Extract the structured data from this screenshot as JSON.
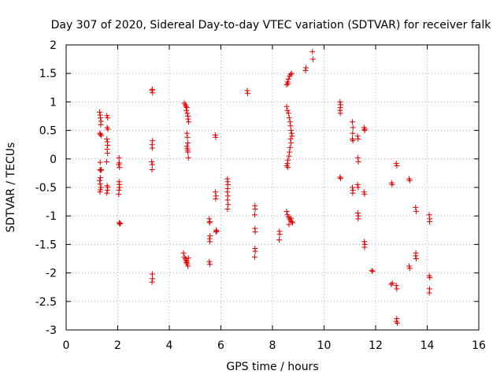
{
  "chart_data": {
    "type": "scatter",
    "title": "Day 307 of 2020, Sidereal Day-to-day VTEC variation (SDTVAR) for receiver falk",
    "xlabel": "GPS time / hours",
    "ylabel": "SDTVAR / TECUs",
    "xlim": [
      0,
      16
    ],
    "ylim": [
      -3,
      2
    ],
    "xticks": [
      "0",
      "2",
      "4",
      "6",
      "8",
      "10",
      "12",
      "14",
      "16"
    ],
    "yticks": [
      "-3",
      "-2.5",
      "-2",
      "-1.5",
      "-1",
      "-0.5",
      "0",
      "0.5",
      "1",
      "1.5",
      "2"
    ],
    "grid": true,
    "marker": "+",
    "color": "#e00000",
    "series": [
      {
        "name": "SDTVAR",
        "points": [
          [
            1.3,
            0.82
          ],
          [
            1.32,
            0.77
          ],
          [
            1.33,
            0.72
          ],
          [
            1.35,
            0.66
          ],
          [
            1.34,
            0.6
          ],
          [
            1.31,
            0.45
          ],
          [
            1.33,
            0.43
          ],
          [
            1.36,
            0.41
          ],
          [
            1.32,
            -0.06
          ],
          [
            1.31,
            -0.19
          ],
          [
            1.34,
            -0.2
          ],
          [
            1.36,
            -0.19
          ],
          [
            1.33,
            -0.33
          ],
          [
            1.3,
            -0.38
          ],
          [
            1.32,
            -0.44
          ],
          [
            1.35,
            -0.5
          ],
          [
            1.33,
            -0.54
          ],
          [
            1.31,
            -0.58
          ],
          [
            1.58,
            0.76
          ],
          [
            1.61,
            0.72
          ],
          [
            1.59,
            0.55
          ],
          [
            1.62,
            0.52
          ],
          [
            1.58,
            0.35
          ],
          [
            1.6,
            0.3
          ],
          [
            1.61,
            0.24
          ],
          [
            1.59,
            0.17
          ],
          [
            1.6,
            0.1
          ],
          [
            1.57,
            -0.05
          ],
          [
            1.59,
            -0.47
          ],
          [
            1.61,
            -0.5
          ],
          [
            1.6,
            -0.55
          ],
          [
            1.58,
            -0.6
          ],
          [
            2.05,
            0.02
          ],
          [
            2.06,
            -0.07
          ],
          [
            2.04,
            -0.1
          ],
          [
            2.07,
            -0.15
          ],
          [
            2.05,
            -0.4
          ],
          [
            2.06,
            -0.45
          ],
          [
            2.07,
            -0.5
          ],
          [
            2.05,
            -0.55
          ],
          [
            2.04,
            -0.62
          ],
          [
            2.06,
            -1.12
          ],
          [
            2.08,
            -1.14
          ],
          [
            2.1,
            -1.13
          ],
          [
            3.33,
            1.2
          ],
          [
            3.35,
            1.16
          ],
          [
            3.34,
            1.22
          ],
          [
            3.35,
            0.32
          ],
          [
            3.33,
            0.25
          ],
          [
            3.34,
            0.19
          ],
          [
            3.32,
            -0.05
          ],
          [
            3.34,
            -0.1
          ],
          [
            3.33,
            -0.19
          ],
          [
            3.34,
            -2.02
          ],
          [
            3.35,
            -2.1
          ],
          [
            3.33,
            -2.16
          ],
          [
            4.58,
            0.98
          ],
          [
            4.62,
            0.95
          ],
          [
            4.65,
            0.92
          ],
          [
            4.68,
            0.9
          ],
          [
            4.66,
            0.85
          ],
          [
            4.7,
            0.8
          ],
          [
            4.72,
            0.75
          ],
          [
            4.73,
            0.7
          ],
          [
            4.75,
            0.65
          ],
          [
            4.68,
            0.45
          ],
          [
            4.7,
            0.38
          ],
          [
            4.72,
            0.28
          ],
          [
            4.68,
            0.22
          ],
          [
            4.7,
            0.18
          ],
          [
            4.72,
            0.12
          ],
          [
            4.74,
            0.02
          ],
          [
            4.71,
            0.15
          ],
          [
            4.55,
            -1.65
          ],
          [
            4.58,
            -1.72
          ],
          [
            4.62,
            -1.75
          ],
          [
            4.65,
            -1.78
          ],
          [
            4.68,
            -1.8
          ],
          [
            4.7,
            -1.84
          ],
          [
            4.72,
            -1.88
          ],
          [
            4.66,
            -1.82
          ],
          [
            4.74,
            -1.74
          ],
          [
            5.55,
            -1.05
          ],
          [
            5.57,
            -1.1
          ],
          [
            5.56,
            -1.12
          ],
          [
            5.58,
            -1.35
          ],
          [
            5.56,
            -1.4
          ],
          [
            5.57,
            -1.45
          ],
          [
            5.55,
            -1.8
          ],
          [
            5.57,
            -1.85
          ],
          [
            5.78,
            0.42
          ],
          [
            5.8,
            0.38
          ],
          [
            5.79,
            -0.58
          ],
          [
            5.81,
            -0.65
          ],
          [
            5.8,
            -0.7
          ],
          [
            5.82,
            -1.25
          ],
          [
            5.84,
            -1.27
          ],
          [
            5.81,
            -1.28
          ],
          [
            6.25,
            -0.35
          ],
          [
            6.26,
            -0.4
          ],
          [
            6.27,
            -0.45
          ],
          [
            6.26,
            -0.52
          ],
          [
            6.25,
            -0.58
          ],
          [
            6.27,
            -0.65
          ],
          [
            6.26,
            -0.72
          ],
          [
            6.28,
            -0.8
          ],
          [
            6.26,
            -0.88
          ],
          [
            7.02,
            1.2
          ],
          [
            7.04,
            1.15
          ],
          [
            7.32,
            -0.82
          ],
          [
            7.33,
            -0.88
          ],
          [
            7.31,
            -0.98
          ],
          [
            7.32,
            -1.22
          ],
          [
            7.33,
            -1.28
          ],
          [
            7.32,
            -1.57
          ],
          [
            7.33,
            -1.62
          ],
          [
            7.31,
            -1.72
          ],
          [
            8.27,
            -1.27
          ],
          [
            8.28,
            -1.32
          ],
          [
            8.26,
            -1.42
          ],
          [
            8.55,
            0.92
          ],
          [
            8.58,
            0.85
          ],
          [
            8.62,
            0.8
          ],
          [
            8.65,
            0.72
          ],
          [
            8.68,
            0.65
          ],
          [
            8.7,
            0.58
          ],
          [
            8.72,
            0.5
          ],
          [
            8.74,
            0.45
          ],
          [
            8.76,
            0.4
          ],
          [
            8.7,
            0.35
          ],
          [
            8.72,
            0.28
          ],
          [
            8.68,
            0.2
          ],
          [
            8.66,
            0.12
          ],
          [
            8.64,
            0.05
          ],
          [
            8.6,
            -0.02
          ],
          [
            8.58,
            -0.08
          ],
          [
            8.55,
            -0.12
          ],
          [
            8.6,
            -0.15
          ],
          [
            8.55,
            -0.92
          ],
          [
            8.58,
            -0.98
          ],
          [
            8.62,
            -1.02
          ],
          [
            8.66,
            -1.05
          ],
          [
            8.7,
            -1.08
          ],
          [
            8.74,
            -1.1
          ],
          [
            8.78,
            -1.12
          ],
          [
            8.64,
            -1.15
          ],
          [
            8.72,
            -1.04
          ],
          [
            8.55,
            1.3
          ],
          [
            8.58,
            1.35
          ],
          [
            8.62,
            1.4
          ],
          [
            8.66,
            1.45
          ],
          [
            8.7,
            1.48
          ],
          [
            8.74,
            1.5
          ],
          [
            8.6,
            1.32
          ],
          [
            9.28,
            1.55
          ],
          [
            9.3,
            1.6
          ],
          [
            9.55,
            1.88
          ],
          [
            9.57,
            1.75
          ],
          [
            10.62,
            1.0
          ],
          [
            10.64,
            0.95
          ],
          [
            10.63,
            0.9
          ],
          [
            10.62,
            0.85
          ],
          [
            10.63,
            0.8
          ],
          [
            10.62,
            -0.32
          ],
          [
            10.64,
            -0.34
          ],
          [
            11.1,
            0.65
          ],
          [
            11.12,
            0.55
          ],
          [
            11.11,
            0.45
          ],
          [
            11.1,
            0.35
          ],
          [
            11.12,
            0.32
          ],
          [
            11.1,
            -0.5
          ],
          [
            11.12,
            -0.55
          ],
          [
            11.11,
            -0.6
          ],
          [
            11.3,
            0.4
          ],
          [
            11.32,
            0.35
          ],
          [
            11.31,
            0.02
          ],
          [
            11.33,
            -0.05
          ],
          [
            11.3,
            -0.45
          ],
          [
            11.32,
            -0.5
          ],
          [
            11.31,
            -0.95
          ],
          [
            11.33,
            -1.0
          ],
          [
            11.32,
            -1.05
          ],
          [
            11.55,
            0.55
          ],
          [
            11.58,
            0.52
          ],
          [
            11.57,
            0.5
          ],
          [
            11.55,
            -0.58
          ],
          [
            11.57,
            -0.62
          ],
          [
            11.56,
            -1.45
          ],
          [
            11.58,
            -1.5
          ],
          [
            11.57,
            -1.55
          ],
          [
            11.85,
            -1.96
          ],
          [
            11.88,
            -1.97
          ],
          [
            12.62,
            -0.42
          ],
          [
            12.64,
            -0.45
          ],
          [
            12.65,
            -2.18
          ],
          [
            12.6,
            -2.2
          ],
          [
            12.8,
            -0.08
          ],
          [
            12.82,
            -0.12
          ],
          [
            12.8,
            -2.22
          ],
          [
            12.82,
            -2.28
          ],
          [
            12.82,
            -2.8
          ],
          [
            12.8,
            -2.85
          ],
          [
            12.84,
            -2.88
          ],
          [
            13.3,
            -0.35
          ],
          [
            13.32,
            -0.38
          ],
          [
            13.3,
            -1.88
          ],
          [
            13.32,
            -1.92
          ],
          [
            13.55,
            -0.85
          ],
          [
            13.57,
            -0.92
          ],
          [
            13.56,
            -1.65
          ],
          [
            13.55,
            -1.7
          ],
          [
            13.57,
            -1.75
          ],
          [
            14.08,
            -0.98
          ],
          [
            14.1,
            -1.05
          ],
          [
            14.09,
            -1.1
          ],
          [
            14.08,
            -2.05
          ],
          [
            14.1,
            -2.08
          ],
          [
            14.09,
            -2.28
          ],
          [
            14.08,
            -2.35
          ]
        ]
      }
    ]
  }
}
